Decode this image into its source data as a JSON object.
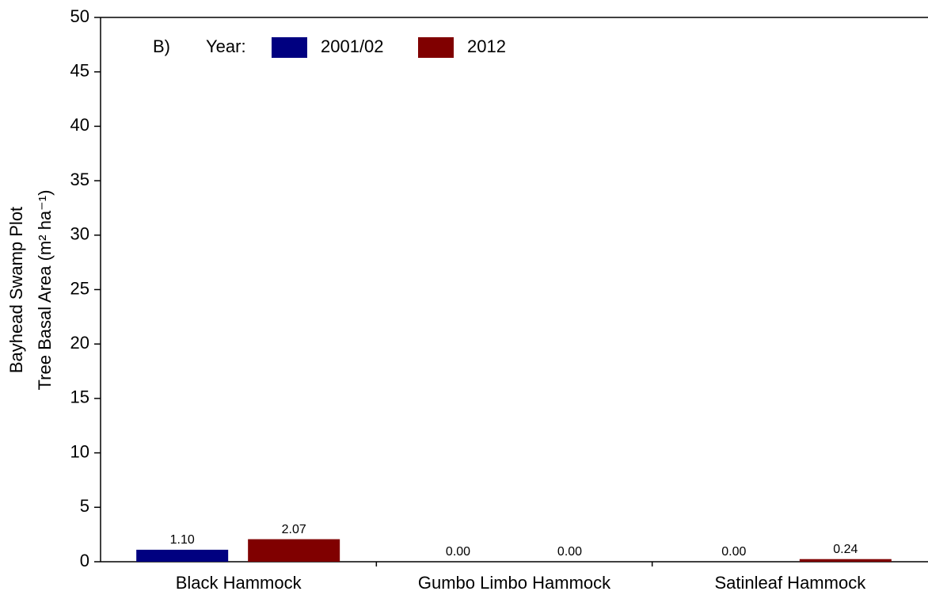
{
  "chart_data": {
    "type": "bar",
    "annotation": "B)",
    "legend_title": "Year:",
    "y_label": [
      "Bayhead Swamp Plot",
      "Tree Basal Area (m² ha⁻¹)"
    ],
    "categories": [
      "Black Hammock",
      "Gumbo Limbo Hammock",
      "Satinleaf Hammock"
    ],
    "series": [
      {
        "name": "2001/02",
        "color": "#000080",
        "values": [
          1.1,
          0,
          0
        ],
        "value_labels": [
          "1.10",
          "0.00",
          "0.00"
        ]
      },
      {
        "name": "2012",
        "color": "#800000",
        "values": [
          2.07,
          0,
          0.24
        ],
        "value_labels": [
          "2.07",
          "0.00",
          "0.24"
        ]
      }
    ],
    "ylim": [
      0,
      50
    ],
    "yticks": [
      0,
      5,
      10,
      15,
      20,
      25,
      30,
      35,
      40,
      45,
      50
    ],
    "grid": false
  }
}
